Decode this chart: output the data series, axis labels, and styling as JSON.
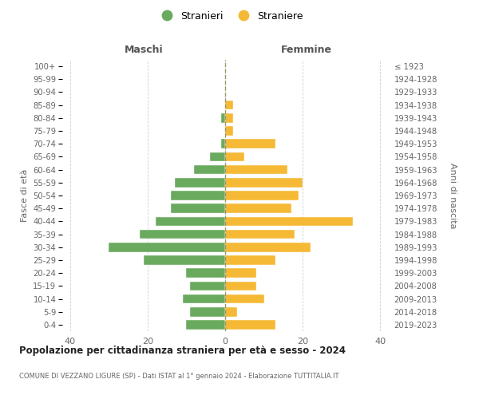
{
  "age_groups": [
    "100+",
    "95-99",
    "90-94",
    "85-89",
    "80-84",
    "75-79",
    "70-74",
    "65-69",
    "60-64",
    "55-59",
    "50-54",
    "45-49",
    "40-44",
    "35-39",
    "30-34",
    "25-29",
    "20-24",
    "15-19",
    "10-14",
    "5-9",
    "0-4"
  ],
  "birth_years": [
    "≤ 1923",
    "1924-1928",
    "1929-1933",
    "1934-1938",
    "1939-1943",
    "1944-1948",
    "1949-1953",
    "1954-1958",
    "1959-1963",
    "1964-1968",
    "1969-1973",
    "1974-1978",
    "1979-1983",
    "1984-1988",
    "1989-1993",
    "1994-1998",
    "1999-2003",
    "2004-2008",
    "2009-2013",
    "2014-2018",
    "2019-2023"
  ],
  "males": [
    0,
    0,
    0,
    0,
    1,
    0,
    1,
    4,
    8,
    13,
    14,
    14,
    18,
    22,
    30,
    21,
    10,
    9,
    11,
    9,
    10
  ],
  "females": [
    0,
    0,
    0,
    2,
    2,
    2,
    13,
    5,
    16,
    20,
    19,
    17,
    33,
    18,
    22,
    13,
    8,
    8,
    10,
    3,
    13
  ],
  "male_color": "#6aaa5e",
  "female_color": "#f5b935",
  "title": "Popolazione per cittadinanza straniera per età e sesso - 2024",
  "subtitle": "COMUNE DI VEZZANO LIGURE (SP) - Dati ISTAT al 1° gennaio 2024 - Elaborazione TUTTITALIA.IT",
  "legend_male": "Stranieri",
  "legend_female": "Straniere",
  "header_left": "Maschi",
  "header_right": "Femmine",
  "ylabel_left": "Fasce di età",
  "ylabel_right": "Anni di nascita",
  "xlim": 42,
  "background_color": "#ffffff",
  "grid_color": "#d0d0d0"
}
